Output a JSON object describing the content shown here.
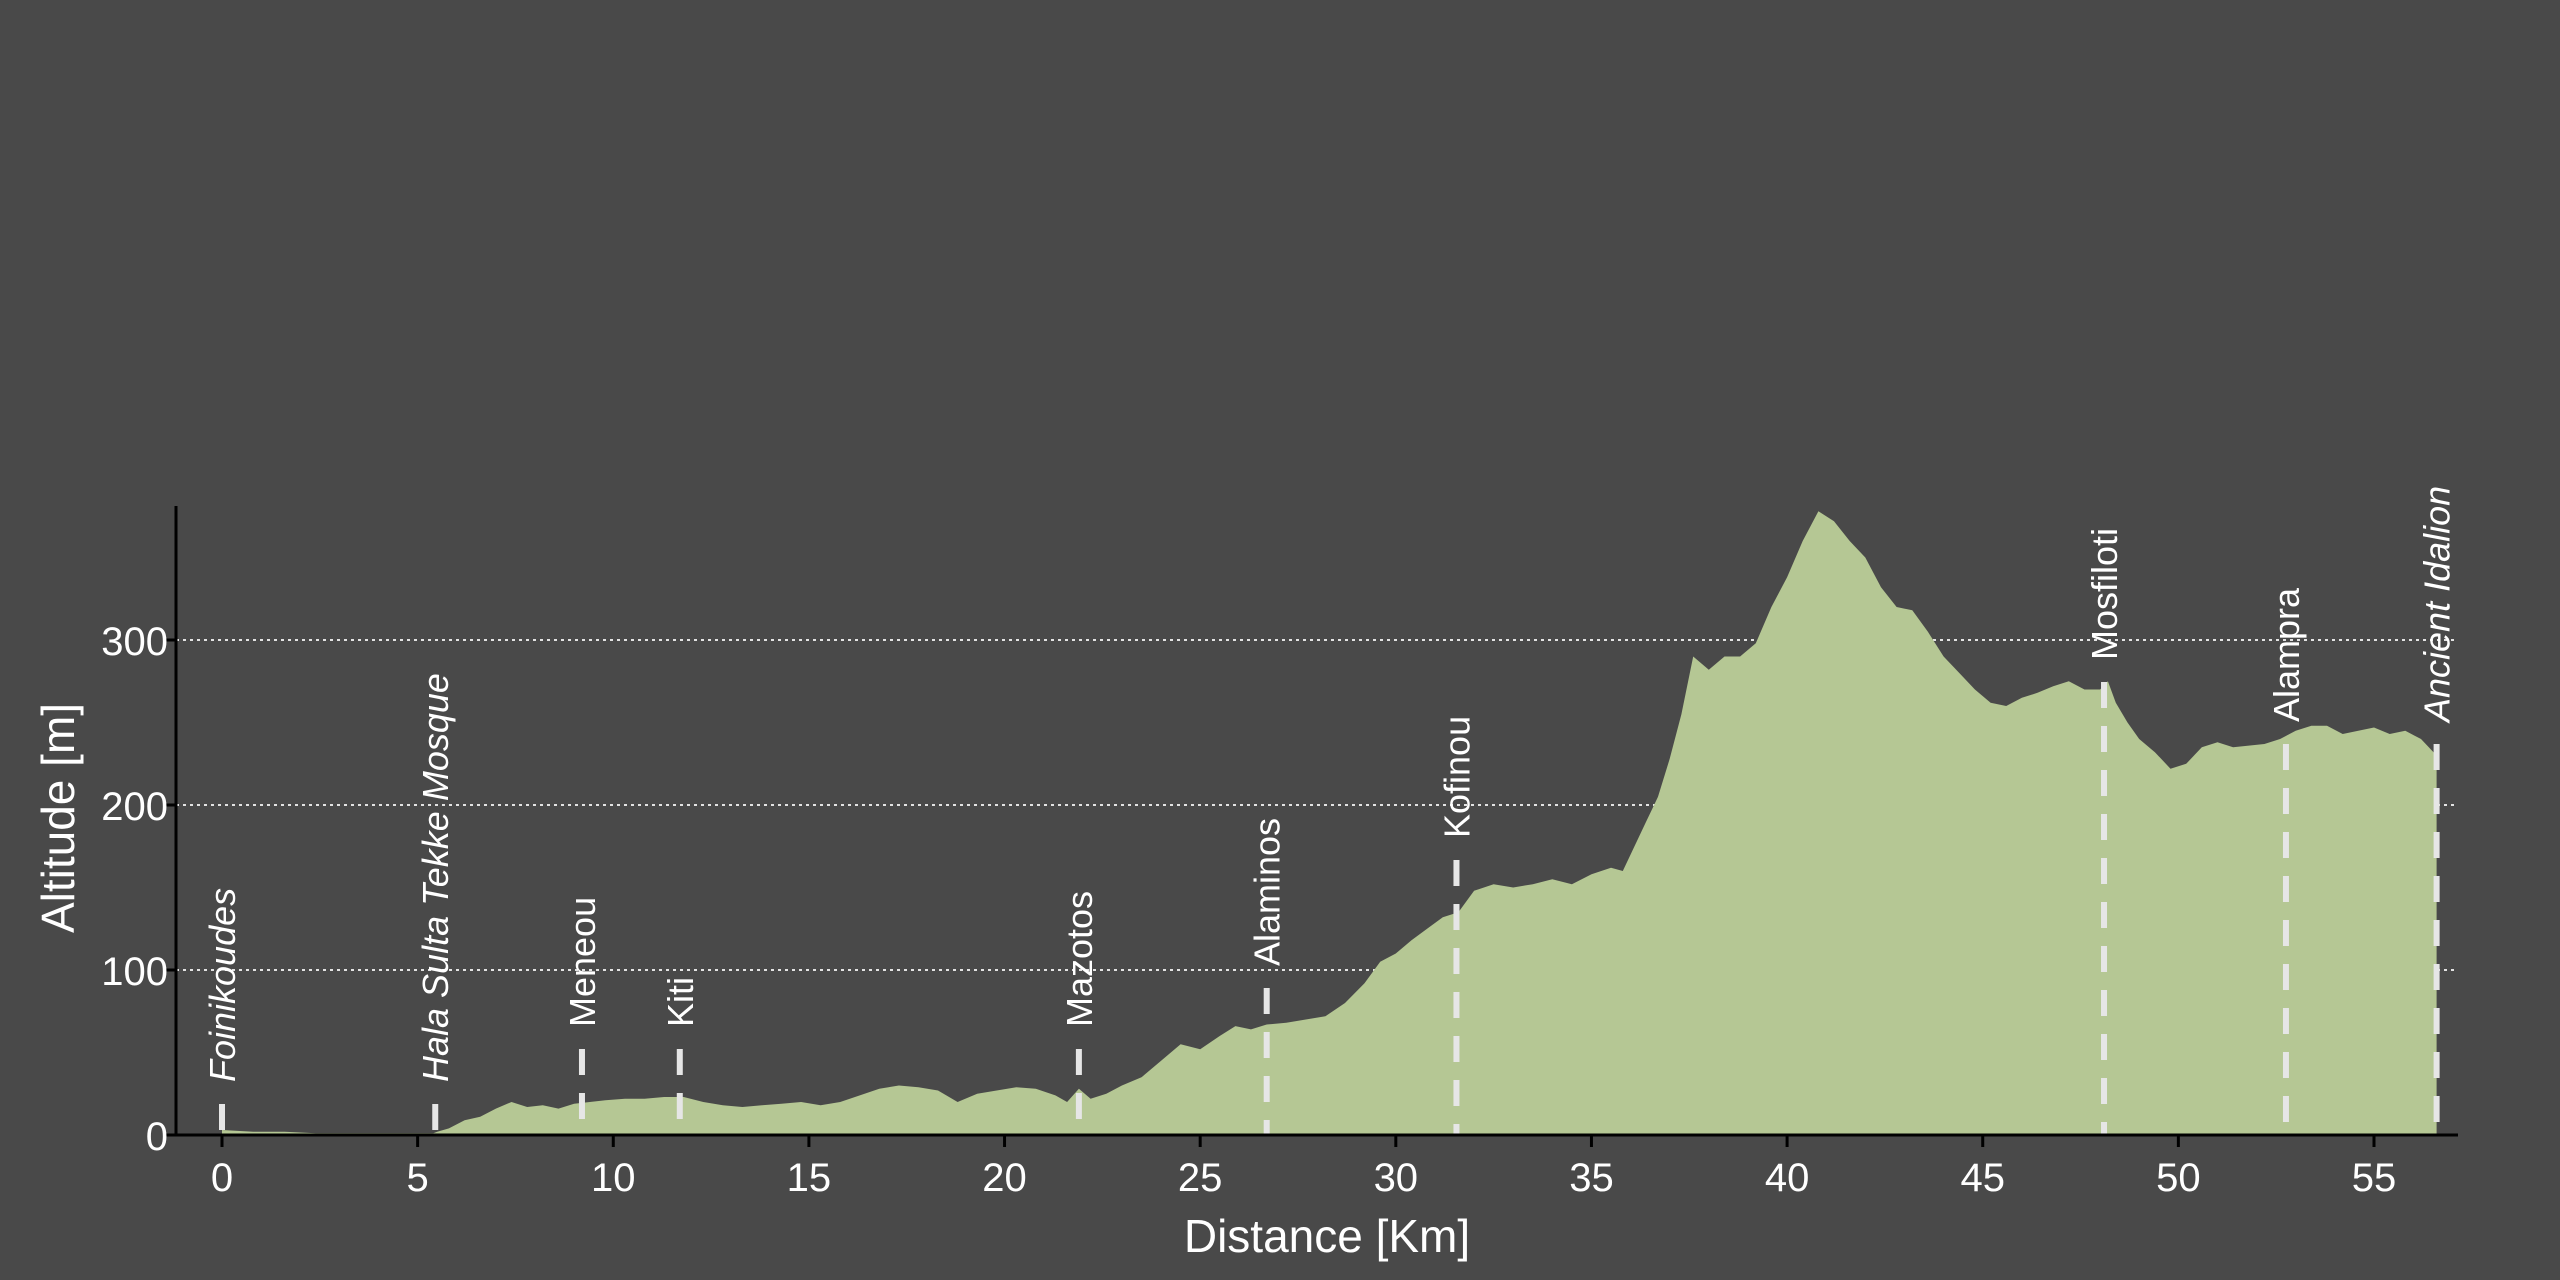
{
  "chart_data": {
    "type": "area",
    "title": "",
    "xlabel": "Distance [Km]",
    "ylabel": "Altitude [m]",
    "xlim": [
      -1.1,
      57.2
    ],
    "ylim": [
      0,
      380
    ],
    "x_ticks": [
      0,
      5,
      10,
      15,
      20,
      25,
      30,
      35,
      40,
      45,
      50,
      55
    ],
    "y_ticks": [
      0,
      100,
      200,
      300
    ],
    "grid": "horizontal dotted lines at 100, 200, 300",
    "colors": {
      "background": "#494949",
      "fill": "#b5c794",
      "grid": "#ffffff",
      "axis": "#000000",
      "text": "#ffffff",
      "marker": "#e6e6e6"
    },
    "series": [
      {
        "x": [
          0,
          0.8,
          1.6,
          2.4,
          3.2,
          4.0,
          4.8,
          5.4,
          5.5,
          5.8,
          6.2,
          6.6,
          7.0,
          7.4,
          7.8,
          8.2,
          8.6,
          9.0,
          9.4,
          9.8,
          10.3,
          10.8,
          11.3,
          11.8,
          12.3,
          12.8,
          13.3,
          13.8,
          14.3,
          14.8,
          15.3,
          15.8,
          16.3,
          16.8,
          17.3,
          17.8,
          18.3,
          18.8,
          19.3,
          19.8,
          20.3,
          20.8,
          21.3,
          21.6,
          21.9,
          22.2,
          22.6,
          23.0,
          23.5,
          24.0,
          24.5,
          25.0,
          25.5,
          25.9,
          26.3,
          26.7,
          27.2,
          27.7,
          28.2,
          28.7,
          29.2,
          29.6,
          30.0,
          30.4,
          30.8,
          31.2,
          31.6,
          32.0,
          32.5,
          33.0,
          33.5,
          34.0,
          34.5,
          35.0,
          35.5,
          35.8,
          36.1,
          36.4,
          36.7,
          37.0,
          37.3,
          37.6,
          38.0,
          38.4,
          38.8,
          39.2,
          39.6,
          40.0,
          40.4,
          40.8,
          41.2,
          41.6,
          42.0,
          42.4,
          42.8,
          43.2,
          43.6,
          44.0,
          44.4,
          44.8,
          45.2,
          45.6,
          46.0,
          46.4,
          46.8,
          47.2,
          47.6,
          48.0,
          48.2,
          48.4,
          48.7,
          49.0,
          49.4,
          49.8,
          50.2,
          50.6,
          51.0,
          51.4,
          51.8,
          52.2,
          52.6,
          53.0,
          53.4,
          53.8,
          54.2,
          54.6,
          55.0,
          55.4,
          55.8,
          56.2,
          56.6
        ],
        "y": [
          3,
          2,
          2,
          1,
          1,
          1,
          1,
          1,
          2,
          4,
          9,
          11,
          16,
          20,
          17,
          18,
          16,
          19,
          20,
          21,
          22,
          22,
          23,
          23,
          20,
          18,
          17,
          18,
          19,
          20,
          18,
          20,
          24,
          28,
          30,
          29,
          27,
          20,
          25,
          27,
          29,
          28,
          24,
          20,
          28,
          22,
          25,
          30,
          35,
          45,
          55,
          52,
          60,
          66,
          64,
          67,
          68,
          70,
          72,
          80,
          92,
          105,
          110,
          118,
          125,
          132,
          135,
          148,
          152,
          150,
          152,
          155,
          152,
          158,
          162,
          160,
          175,
          190,
          205,
          228,
          255,
          290,
          282,
          290,
          290,
          298,
          320,
          338,
          360,
          378,
          372,
          360,
          350,
          332,
          320,
          318,
          305,
          290,
          280,
          270,
          262,
          260,
          265,
          268,
          272,
          275,
          270,
          270,
          275,
          262,
          250,
          240,
          232,
          222,
          225,
          235,
          238,
          235,
          236,
          237,
          240,
          245,
          248,
          248,
          243,
          245,
          247,
          243,
          245,
          240,
          230
        ]
      }
    ],
    "markers": [
      {
        "x": 0.0,
        "label": "Foinikoudes",
        "italic": true
      },
      {
        "x": 5.45,
        "label": "Hala Sulta Tekke Mosque",
        "italic": true
      },
      {
        "x": 9.2,
        "label": "Meneou",
        "italic": false
      },
      {
        "x": 11.7,
        "label": "Kiti",
        "italic": false
      },
      {
        "x": 21.9,
        "label": "Mazotos",
        "italic": false
      },
      {
        "x": 26.7,
        "label": "Alaminos",
        "italic": false
      },
      {
        "x": 31.55,
        "label": "Kofinou",
        "italic": false
      },
      {
        "x": 48.1,
        "label": "Mosfiloti",
        "italic": false
      },
      {
        "x": 52.75,
        "label": "Alampra",
        "italic": false
      },
      {
        "x": 56.6,
        "label": "Ancient Idalion",
        "italic": true
      }
    ]
  }
}
